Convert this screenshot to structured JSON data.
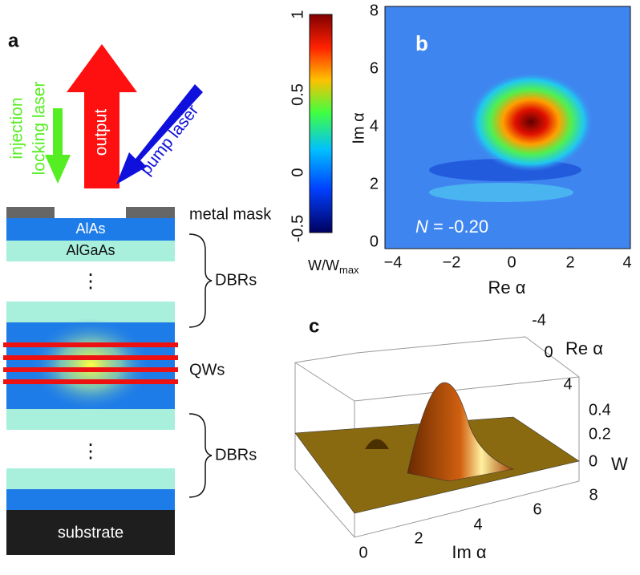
{
  "panel_a": {
    "label": "a",
    "injection": "injection",
    "locking": "locking laser",
    "output": "output",
    "pump": "pump laser",
    "mask": "metal mask",
    "alas": "AlAs",
    "algaas": "AlGaAs",
    "dots": [
      "⋮",
      "⋮"
    ],
    "dbrs_top": "DBRs",
    "qws": "QWs",
    "dbrs_bottom": "DBRs",
    "substrate": "substrate"
  },
  "panel_b": {
    "label": "b",
    "annotation_n": "N",
    "annotation_value": " = -0.20",
    "x_label": "Re α",
    "y_label": "Im α",
    "xticks": [
      "−4",
      "−2",
      "0",
      "2",
      "4"
    ],
    "yticks": [
      "0",
      "2",
      "4",
      "6",
      "8"
    ],
    "colorbar": {
      "ticks": [
        "1",
        "0.5",
        "0",
        "-0.5"
      ],
      "label": "W/W",
      "label_sub": "max"
    }
  },
  "panel_c": {
    "label": "c",
    "x_label": "Im α",
    "xticks": [
      "0",
      "2",
      "4",
      "6",
      "8"
    ],
    "y_label": "Re α",
    "yticks": [
      "-4",
      "0",
      "4"
    ],
    "z_label": "W",
    "zticks": [
      "0.4",
      "0.2",
      "0"
    ]
  }
}
